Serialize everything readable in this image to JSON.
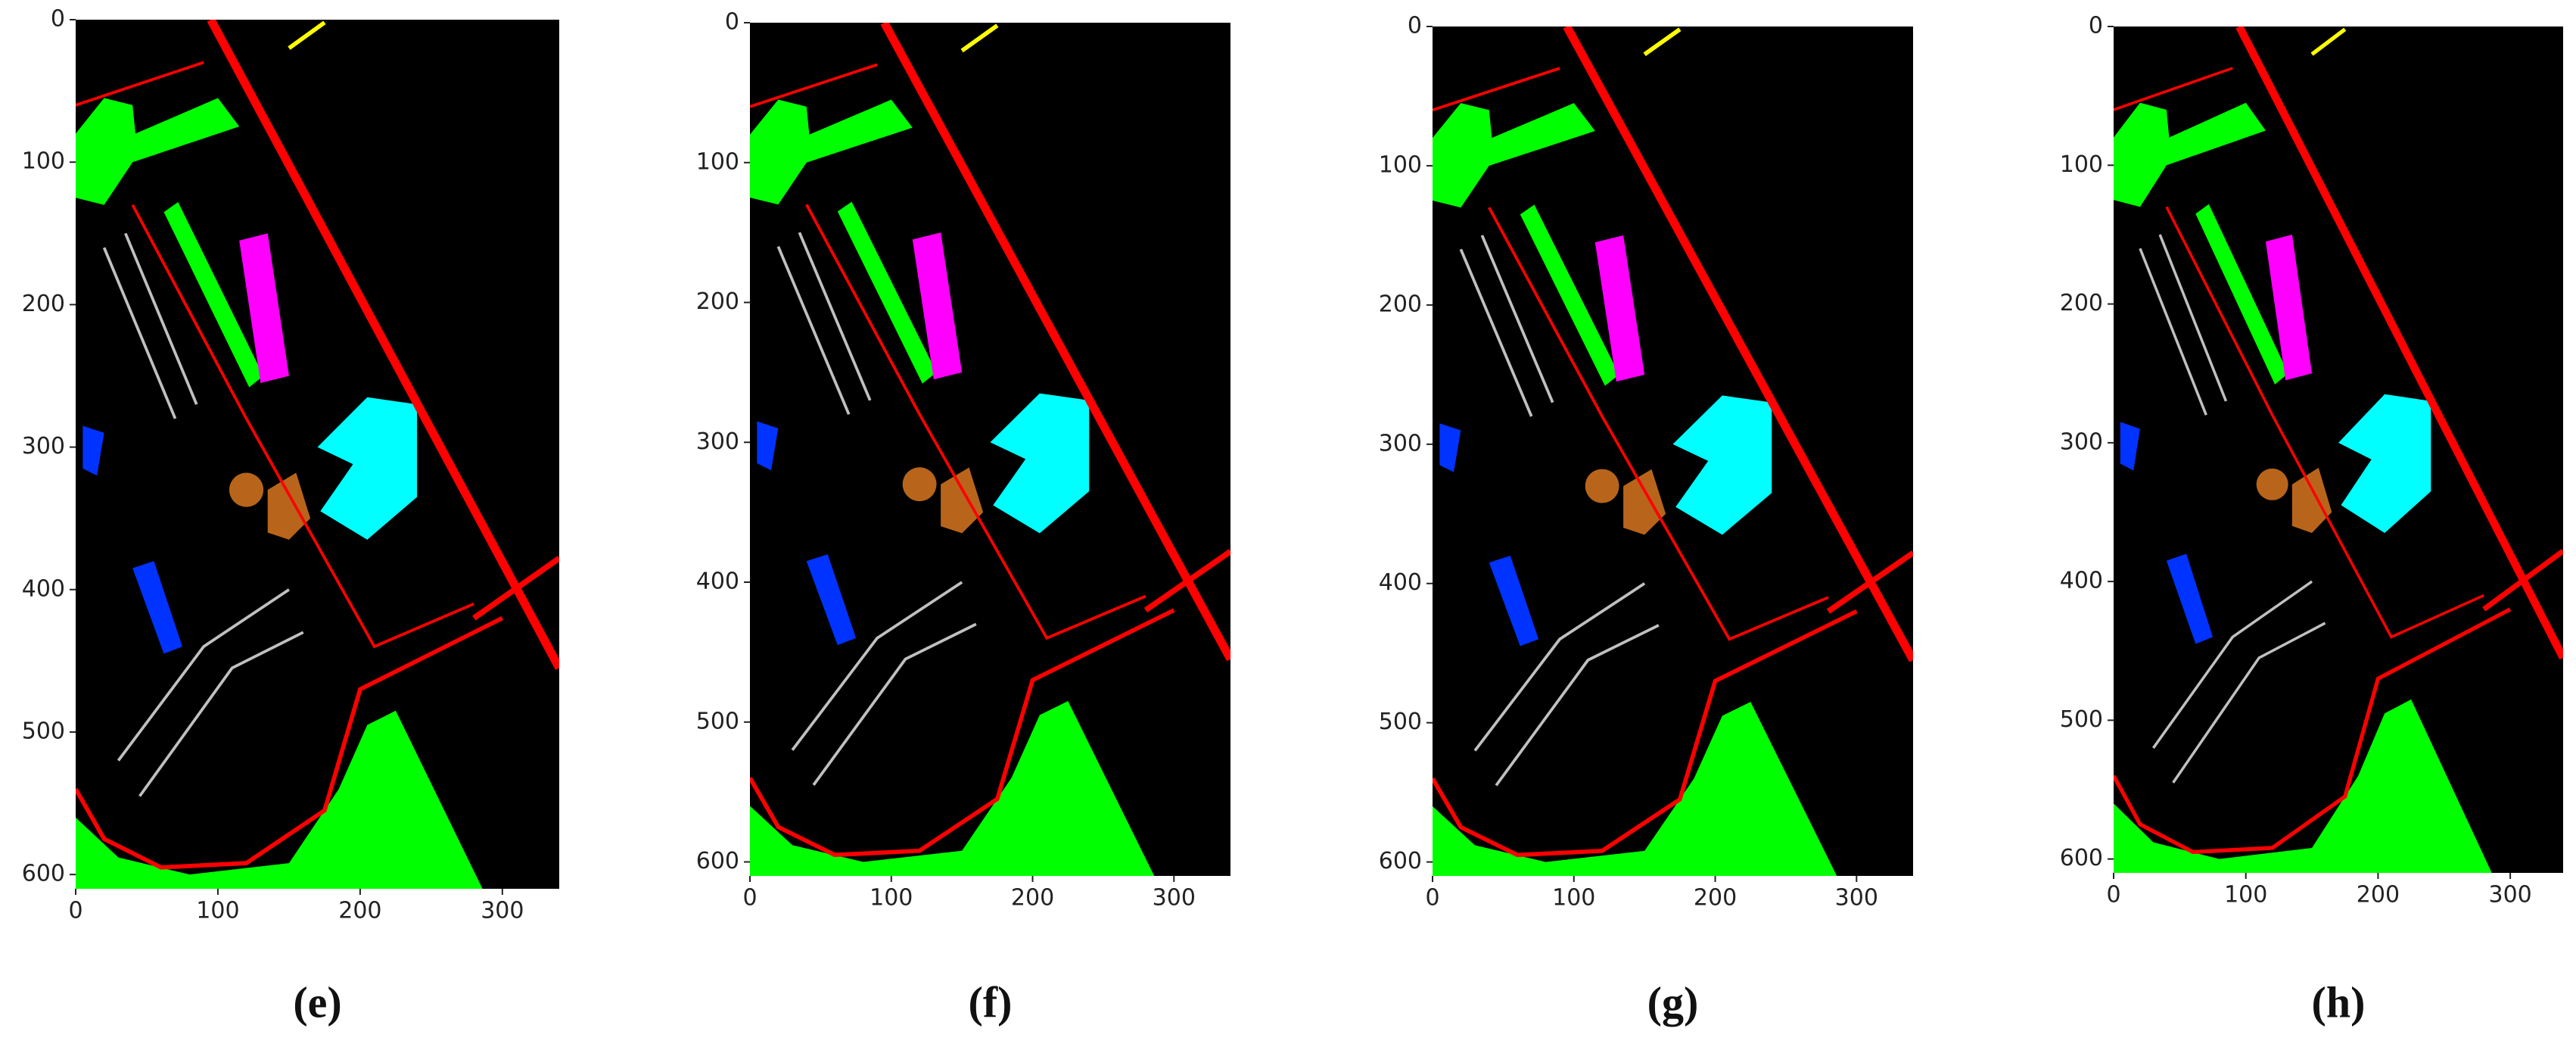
{
  "chart_data": [
    {
      "type": "image",
      "label": "(e)",
      "xlim": [
        0,
        340
      ],
      "ylim": [
        610,
        0
      ],
      "xticks": [
        0,
        100,
        200,
        300
      ],
      "yticks": [
        0,
        100,
        200,
        300,
        400,
        500,
        600
      ]
    },
    {
      "type": "image",
      "label": "(f)",
      "xlim": [
        0,
        340
      ],
      "ylim": [
        610,
        0
      ],
      "xticks": [
        0,
        100,
        200,
        300
      ],
      "yticks": [
        0,
        100,
        200,
        300,
        400,
        500,
        600
      ]
    },
    {
      "type": "image",
      "label": "(g)",
      "xlim": [
        0,
        340
      ],
      "ylim": [
        610,
        0
      ],
      "xticks": [
        0,
        100,
        200,
        300
      ],
      "yticks": [
        0,
        100,
        200,
        300,
        400,
        500,
        600
      ]
    },
    {
      "type": "image",
      "label": "(h)",
      "xlim": [
        0,
        340
      ],
      "ylim": [
        610,
        0
      ],
      "xticks": [
        0,
        100,
        200,
        300
      ],
      "yticks": [
        0,
        100,
        200,
        300,
        400,
        500,
        600
      ]
    }
  ]
}
